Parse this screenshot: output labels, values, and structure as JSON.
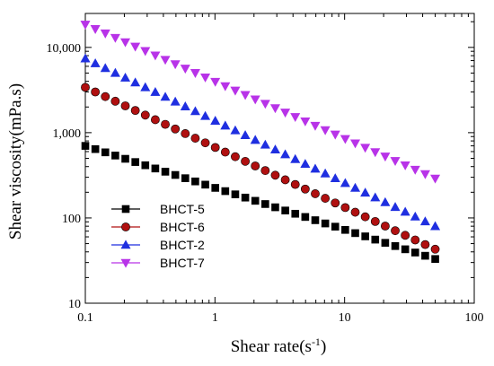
{
  "chart_data": {
    "type": "scatter",
    "xlabel": "Shear rate(s",
    "xlabel_superscript": "-1",
    "xlabel_suffix": ")",
    "ylabel": "Shear viscosity(mPa.s)",
    "x_scale": "log",
    "y_scale": "log",
    "xlim": [
      0.1,
      100
    ],
    "ylim": [
      10,
      25000
    ],
    "x_ticks": [
      {
        "value": 0.1,
        "label": "0.1"
      },
      {
        "value": 1,
        "label": "1"
      },
      {
        "value": 10,
        "label": "10"
      },
      {
        "value": 100,
        "label": "100"
      }
    ],
    "y_ticks": [
      {
        "value": 10,
        "label": "10"
      },
      {
        "value": 100,
        "label": "100"
      },
      {
        "value": 1000,
        "label": "1,000"
      },
      {
        "value": 10000,
        "label": "10,000"
      }
    ],
    "grid": false,
    "legend_position": "lower-left",
    "x_range": [
      0.1,
      50
    ],
    "num_points": 36,
    "series": [
      {
        "name": "BHCT-5",
        "marker": "square",
        "color": "#000000",
        "edge": "#000000",
        "y_start": 700,
        "y_end": 33
      },
      {
        "name": "BHCT-6",
        "marker": "circle",
        "color": "#b01010",
        "edge": "#000000",
        "y_start": 3400,
        "y_end": 43
      },
      {
        "name": "BHCT-2",
        "marker": "triangle-up",
        "color": "#1f2fe0",
        "edge": "#1f2fe0",
        "y_start": 7400,
        "y_end": 80
      },
      {
        "name": "BHCT-7",
        "marker": "triangle-down",
        "color": "#b833e8",
        "edge": "#b833e8",
        "y_start": 18500,
        "y_end": 290
      }
    ]
  }
}
